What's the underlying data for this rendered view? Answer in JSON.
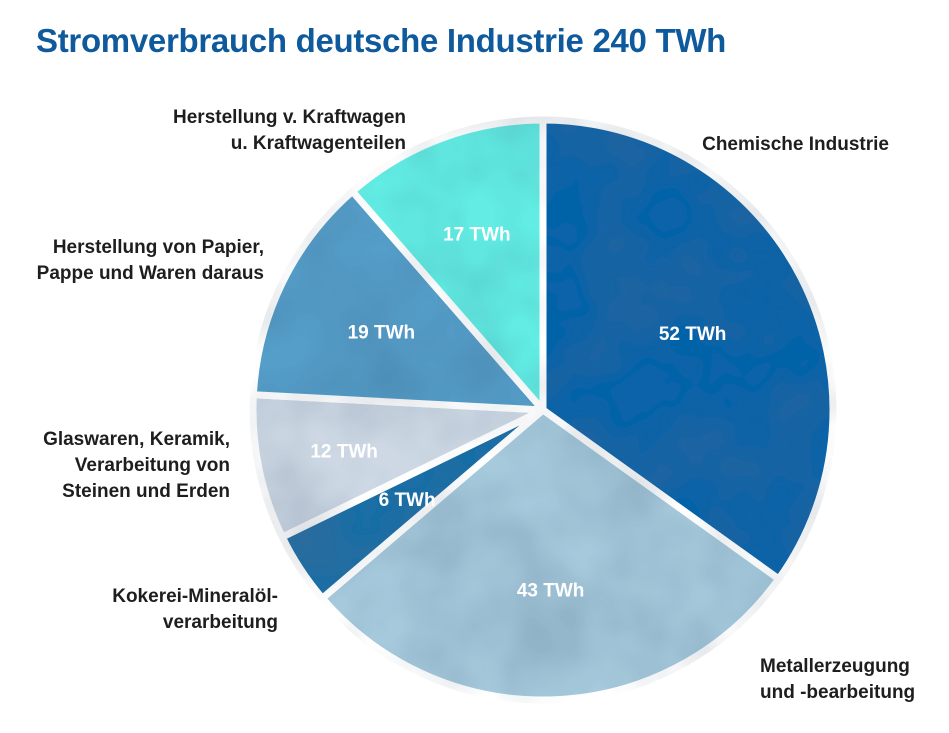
{
  "chart_data": {
    "type": "pie",
    "title": "Stromverbrauch deutsche Industrie 240 TWh",
    "unit": "TWh",
    "slices": [
      {
        "lines": [
          "Chemische Industrie"
        ],
        "value": 52,
        "value_label": "52 TWh",
        "color": "#0a63a9"
      },
      {
        "lines": [
          "Metallerzeugung",
          "und -bearbeitung"
        ],
        "value": 43,
        "value_label": "43 TWh",
        "color": "#a6c9dc"
      },
      {
        "lines": [
          "Kokerei-Mineralöl-",
          "verarbeitung"
        ],
        "value": 6,
        "value_label": "6 TWh",
        "color": "#1f6ea6"
      },
      {
        "lines": [
          "Glaswaren, Keramik,",
          "Verarbeitung von",
          "Steinen und Erden"
        ],
        "value": 12,
        "value_label": "12 TWh",
        "color": "#cdd8e4"
      },
      {
        "lines": [
          "Herstellung von Papier,",
          "Pappe und Waren daraus"
        ],
        "value": 19,
        "value_label": "19 TWh",
        "color": "#559ec9"
      },
      {
        "lines": [
          "Herstellung v. Kraftwagen",
          "u. Kraftwagenteilen"
        ],
        "value": 17,
        "value_label": "17 TWh",
        "color": "#62ece3"
      }
    ]
  }
}
